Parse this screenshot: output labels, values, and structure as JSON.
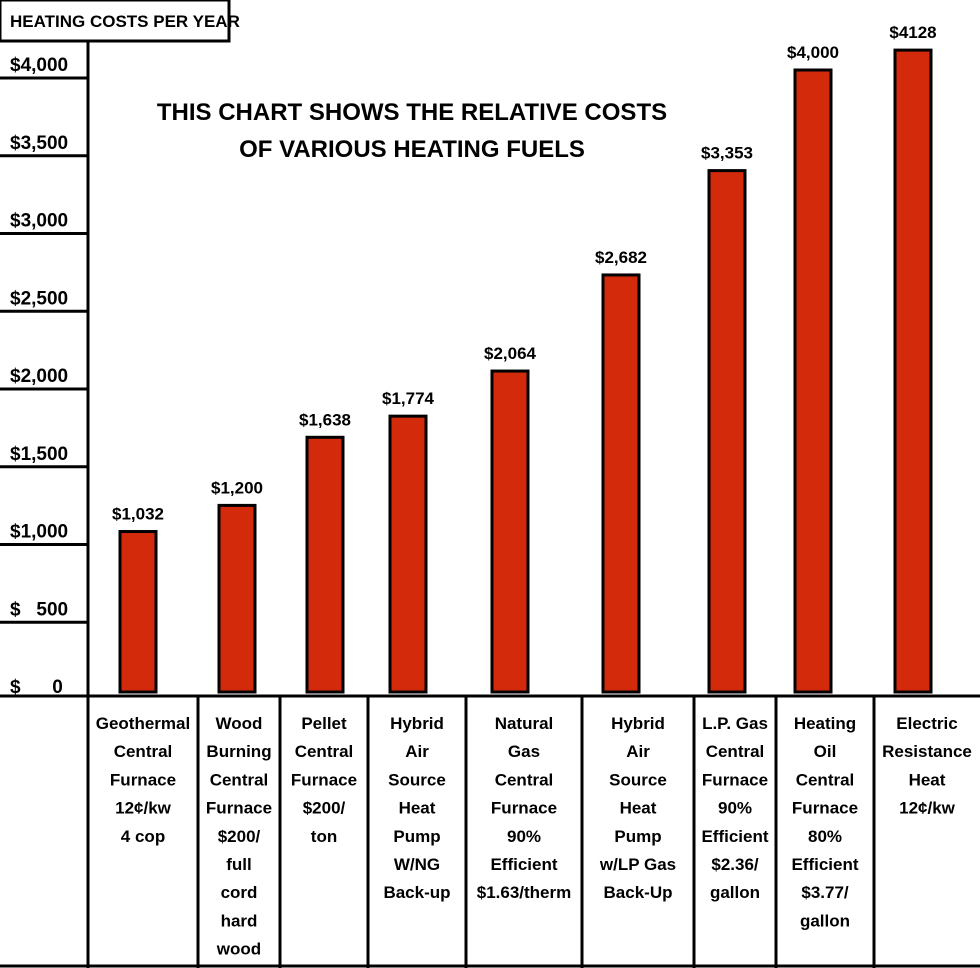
{
  "chart_data": {
    "type": "bar",
    "title_box": "HEATING COSTS PER YEAR",
    "headline": [
      "THIS CHART SHOWS THE RELATIVE COSTS",
      "OF VARIOUS HEATING FUELS"
    ],
    "ylim": [
      0,
      4300
    ],
    "y_ticks": [
      {
        "value": 4000,
        "label": "$4,000"
      },
      {
        "value": 3500,
        "label": "$3,500"
      },
      {
        "value": 3000,
        "label": "$3,000"
      },
      {
        "value": 2500,
        "label": "$2,500"
      },
      {
        "value": 2000,
        "label": "$2,000"
      },
      {
        "value": 1500,
        "label": "$1,500"
      },
      {
        "value": 1000,
        "label": "$1,000"
      },
      {
        "value": 500,
        "label": "$   500"
      },
      {
        "value": 0,
        "label": "$      0"
      }
    ],
    "values": [
      1032,
      1200,
      1638,
      1774,
      2064,
      2682,
      3353,
      4000,
      4128
    ],
    "value_labels": [
      "$1,032",
      "$1,200",
      "$1,638",
      "$1,774",
      "$2,064",
      "$2,682",
      "$3,353",
      "$4,000",
      "$4128"
    ],
    "categories": [
      [
        "Geothermal",
        "Central",
        "Furnace",
        "12¢/kw",
        "4 cop"
      ],
      [
        "Wood",
        "Burning",
        "Central",
        "Furnace",
        "$200/",
        "full",
        "cord",
        "hard",
        "wood"
      ],
      [
        "Pellet",
        "Central",
        "Furnace",
        "$200/",
        "ton"
      ],
      [
        "Hybrid",
        "Air",
        "Source",
        "Heat",
        "Pump",
        "W/NG",
        "Back-up"
      ],
      [
        "Natural",
        "Gas",
        "Central",
        "Furnace",
        "90%",
        "Efficient",
        "$1.63/therm"
      ],
      [
        "Hybrid",
        "Air",
        "Source",
        "Heat",
        "Pump",
        "w/LP Gas",
        "Back-Up"
      ],
      [
        "L.P. Gas",
        "Central",
        "Furnace",
        "90%",
        "Efficient",
        "$2.36/",
        "gallon"
      ],
      [
        "Heating",
        "Oil",
        "Central",
        "Furnace",
        "80%",
        "Efficient",
        "$3.77/",
        "gallon"
      ],
      [
        "Electric",
        "Resistance",
        "Heat",
        "12¢/kw"
      ]
    ],
    "bar_color": "#d42a0c",
    "grid": false,
    "legend": "none"
  }
}
